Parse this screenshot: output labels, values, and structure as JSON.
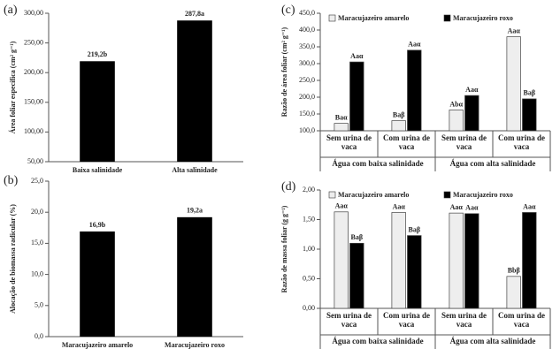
{
  "chart_data": [
    {
      "type": "bar",
      "panel_label": "(a)",
      "ylabel": "Área foliar específica (cm² g⁻¹)",
      "categories": [
        "Baixa salinidade",
        "Alta salinidade"
      ],
      "values": [
        219.2,
        287.8
      ],
      "value_labels": [
        "219,2b",
        "287,8a"
      ],
      "color": "#000000",
      "ylim": [
        50,
        300
      ],
      "yticks": [
        {
          "value": 50,
          "label": "50,00"
        },
        {
          "value": 100,
          "label": "100,00"
        },
        {
          "value": 150,
          "label": "150,00"
        },
        {
          "value": 200,
          "label": "200,00"
        },
        {
          "value": 250,
          "label": "250,00"
        },
        {
          "value": 300,
          "label": "300,00"
        }
      ]
    },
    {
      "type": "bar",
      "panel_label": "(b)",
      "ylabel": "Alocação de biomassa radicular (%)",
      "categories": [
        "Maracujazeiro amarelo",
        "Maracujazeiro roxo"
      ],
      "values": [
        16.9,
        19.2
      ],
      "value_labels": [
        "16,9b",
        "19,2a"
      ],
      "color": "#000000",
      "ylim": [
        0,
        25
      ],
      "yticks": [
        {
          "value": 0,
          "label": "0,0"
        },
        {
          "value": 5,
          "label": "5,0"
        },
        {
          "value": 10,
          "label": "10,0"
        },
        {
          "value": 15,
          "label": "15,0"
        },
        {
          "value": 20,
          "label": "20,0"
        },
        {
          "value": 25,
          "label": "25,0"
        }
      ]
    },
    {
      "type": "grouped_bar",
      "panel_label": "(c)",
      "ylabel": "Razão de área foliar (cm² g⁻¹)",
      "categories": [
        "Sem urina de vaca",
        "Com urina de vaca",
        "Sem urina de vaca",
        "Com urina de vaca"
      ],
      "groups": [
        "Água com baixa salinidade",
        "Água com alta salinidade"
      ],
      "series": [
        {
          "name": "Maracujazeiro amarelo",
          "color": "#eeeeee",
          "values": [
            122,
            130,
            162,
            380
          ],
          "value_labels": [
            "Baα",
            "Baβ",
            "Abα",
            "Aaα"
          ]
        },
        {
          "name": "Maracujazeiro roxo",
          "color": "#000000",
          "values": [
            305,
            340,
            205,
            195
          ],
          "value_labels": [
            "Aaα",
            "Aaα",
            "Aaα",
            "Baβ"
          ]
        }
      ],
      "ylim": [
        100,
        450
      ],
      "yticks": [
        {
          "value": 100,
          "label": "100,0"
        },
        {
          "value": 150,
          "label": "150,0"
        },
        {
          "value": 200,
          "label": "200,0"
        },
        {
          "value": 250,
          "label": "250,0"
        },
        {
          "value": 300,
          "label": "300,0"
        },
        {
          "value": 350,
          "label": "350,0"
        },
        {
          "value": 400,
          "label": "400,0"
        },
        {
          "value": 450,
          "label": "450,0"
        }
      ]
    },
    {
      "type": "grouped_bar",
      "panel_label": "(d)",
      "ylabel": "Razão de massa foliar (g g⁻¹)",
      "categories": [
        "Sem urina de vaca",
        "Com urina de vaca",
        "Sem urina de vaca",
        "Com urina de vaca"
      ],
      "groups": [
        "Água com baixa salinidade",
        "Água com alta salinidade"
      ],
      "series": [
        {
          "name": "Maracujazeiro amarelo",
          "color": "#eeeeee",
          "values": [
            1.63,
            1.62,
            1.61,
            0.54
          ],
          "value_labels": [
            "Aaα",
            "Aaα",
            "Aaα",
            "Bbβ"
          ]
        },
        {
          "name": "Maracujazeiro roxo",
          "color": "#000000",
          "values": [
            1.1,
            1.23,
            1.6,
            1.62
          ],
          "value_labels": [
            "Baβ",
            "Baβ",
            "Aaα",
            "Aaα"
          ]
        }
      ],
      "ylim": [
        0,
        2
      ],
      "yticks": [
        {
          "value": 0,
          "label": "0,00"
        },
        {
          "value": 0.5,
          "label": "0,50"
        },
        {
          "value": 1,
          "label": "1,00"
        },
        {
          "value": 1.5,
          "label": "1,50"
        },
        {
          "value": 2,
          "label": "2,00"
        }
      ]
    }
  ]
}
